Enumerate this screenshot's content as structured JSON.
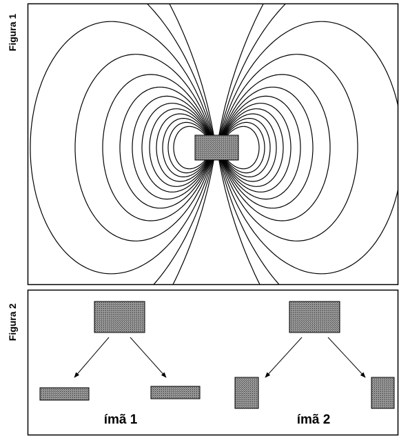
{
  "figure1": {
    "label": "Figura 1"
  },
  "figure2": {
    "label": "Figura 2",
    "magnets": [
      {
        "label": "ímã 1"
      },
      {
        "label": "ímã 2"
      }
    ]
  }
}
